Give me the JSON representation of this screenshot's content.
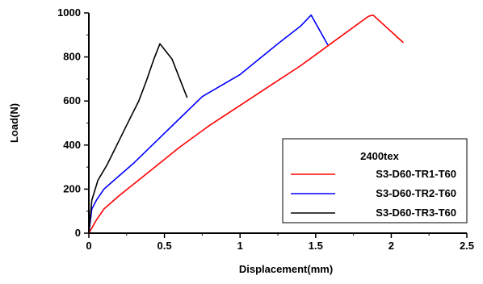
{
  "chart_data": {
    "type": "line",
    "xlabel": "Displacement(mm)",
    "ylabel": "Load(N)",
    "xlim": [
      0,
      2.5
    ],
    "ylim": [
      0,
      1000
    ],
    "xticks": [
      "0",
      "0.5",
      "1",
      "1.5",
      "2",
      "2.5"
    ],
    "yticks": [
      "0",
      "200",
      "400",
      "600",
      "800",
      "1000"
    ],
    "grid": false,
    "legend": {
      "title": "2400tex",
      "position": "bottom-right"
    },
    "series": [
      {
        "name": "S3-D60-TR1-T60",
        "color": "#ff0000",
        "points": [
          [
            0,
            0
          ],
          [
            0.05,
            60
          ],
          [
            0.1,
            110
          ],
          [
            0.2,
            170
          ],
          [
            0.4,
            280
          ],
          [
            0.6,
            390
          ],
          [
            0.8,
            490
          ],
          [
            1.0,
            580
          ],
          [
            1.2,
            670
          ],
          [
            1.4,
            760
          ],
          [
            1.6,
            860
          ],
          [
            1.85,
            985
          ],
          [
            1.88,
            990
          ],
          [
            2.08,
            865
          ]
        ]
      },
      {
        "name": "S3-D60-TR2-T60",
        "color": "#0000ff",
        "points": [
          [
            0,
            0
          ],
          [
            0.02,
            110
          ],
          [
            0.05,
            150
          ],
          [
            0.1,
            200
          ],
          [
            0.2,
            260
          ],
          [
            0.3,
            320
          ],
          [
            0.45,
            420
          ],
          [
            0.6,
            520
          ],
          [
            0.75,
            620
          ],
          [
            1.0,
            720
          ],
          [
            1.25,
            860
          ],
          [
            1.4,
            940
          ],
          [
            1.47,
            990
          ],
          [
            1.58,
            855
          ]
        ]
      },
      {
        "name": "S3-D60-TR3-T60",
        "color": "#000000",
        "points": [
          [
            0,
            0
          ],
          [
            0.02,
            150
          ],
          [
            0.06,
            240
          ],
          [
            0.12,
            310
          ],
          [
            0.2,
            420
          ],
          [
            0.25,
            490
          ],
          [
            0.33,
            600
          ],
          [
            0.38,
            690
          ],
          [
            0.43,
            790
          ],
          [
            0.47,
            860
          ],
          [
            0.55,
            790
          ],
          [
            0.65,
            615
          ]
        ]
      }
    ]
  }
}
